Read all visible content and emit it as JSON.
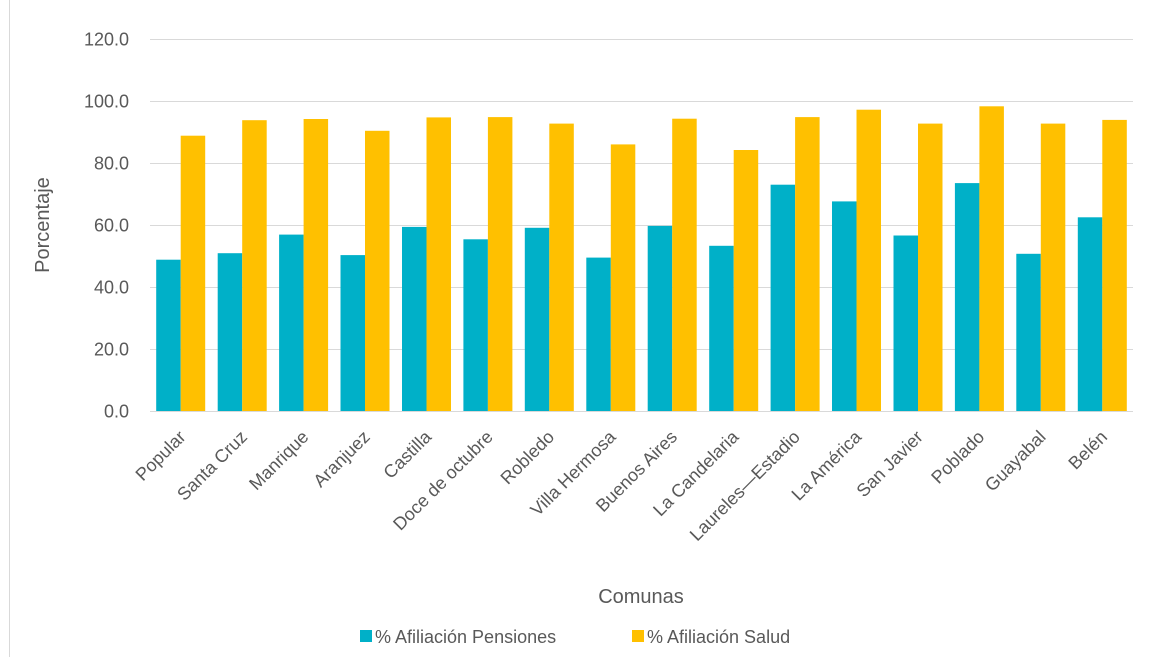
{
  "chart_data": {
    "type": "bar",
    "title": "",
    "xlabel": "Comunas",
    "ylabel": "Porcentaje",
    "ylim": [
      0,
      120
    ],
    "yticks": [
      "0.0",
      "20.0",
      "40.0",
      "60.0",
      "80.0",
      "100.0",
      "120.0"
    ],
    "grid": true,
    "legend_position": "bottom",
    "categories": [
      "Popular",
      "Santa Cruz",
      "Manrique",
      "Aranjuez",
      "Castilla",
      "Doce de octubre",
      "Robledo",
      "Villa Hermosa",
      "Buenos Aires",
      "La Candelaria",
      "Laureles—Estadio",
      "La América",
      "San Javier",
      "Poblado",
      "Guayabal",
      "Belén"
    ],
    "series": [
      {
        "name": "% Afiliación Pensiones",
        "color": "#00b0c8",
        "values": [
          48.8,
          50.9,
          56.9,
          50.3,
          59.4,
          55.4,
          59.1,
          49.5,
          59.7,
          53.3,
          73.0,
          67.6,
          56.6,
          73.5,
          50.7,
          62.5
        ]
      },
      {
        "name": "% Afiliación Salud",
        "color": "#ffc000",
        "values": [
          88.8,
          93.8,
          94.2,
          90.4,
          94.7,
          94.8,
          92.7,
          86.0,
          94.3,
          84.2,
          94.8,
          97.2,
          92.7,
          98.3,
          92.7,
          93.9
        ]
      }
    ]
  }
}
